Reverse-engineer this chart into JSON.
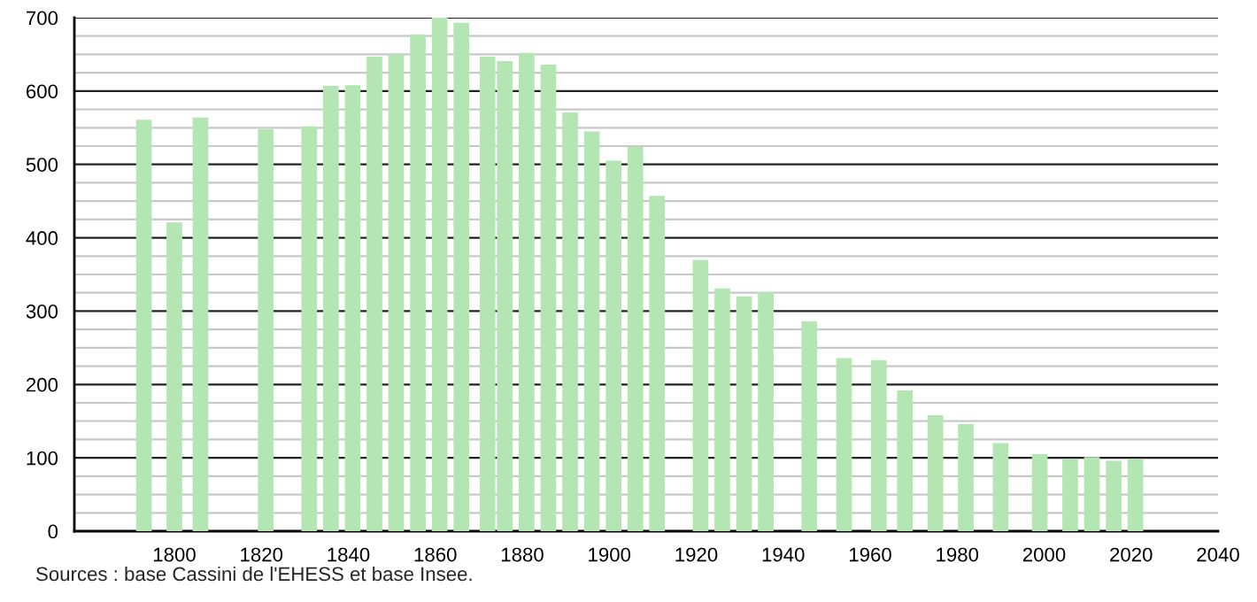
{
  "chart_data": {
    "type": "bar",
    "x": [
      1793,
      1800,
      1806,
      1821,
      1831,
      1836,
      1841,
      1846,
      1851,
      1856,
      1861,
      1866,
      1872,
      1876,
      1881,
      1886,
      1891,
      1896,
      1901,
      1906,
      1911,
      1921,
      1926,
      1931,
      1936,
      1946,
      1954,
      1962,
      1968,
      1975,
      1982,
      1990,
      1999,
      2006,
      2011,
      2016,
      2021
    ],
    "values": [
      561,
      421,
      564,
      548,
      552,
      607,
      608,
      647,
      650,
      677,
      700,
      693,
      647,
      641,
      652,
      636,
      571,
      545,
      505,
      524,
      457,
      370,
      331,
      320,
      326,
      286,
      236,
      233,
      192,
      158,
      146,
      120,
      105,
      98,
      101,
      96,
      98
    ],
    "color": "#b3e6b3",
    "xlim": [
      1777,
      2040
    ],
    "xticks": [
      1800,
      1820,
      1840,
      1860,
      1880,
      1900,
      1920,
      1940,
      1960,
      1980,
      2000,
      2020,
      2040
    ],
    "ylim": [
      0,
      700
    ],
    "yticks": [
      0,
      {
        "value": 25,
        "label": null
      },
      {
        "value": 50,
        "label": null
      },
      {
        "value": 75,
        "label": null
      },
      100,
      {
        "value": 125,
        "label": null
      },
      {
        "value": 150,
        "label": null
      },
      {
        "value": 175,
        "label": null
      },
      200,
      {
        "value": 225,
        "label": null
      },
      {
        "value": 250,
        "label": null
      },
      {
        "value": 275,
        "label": null
      },
      300,
      {
        "value": 325,
        "label": null
      },
      {
        "value": 350,
        "label": null
      },
      {
        "value": 375,
        "label": null
      },
      400,
      {
        "value": 425,
        "label": null
      },
      {
        "value": 450,
        "label": null
      },
      {
        "value": 475,
        "label": null
      },
      500,
      {
        "value": 525,
        "label": null
      },
      {
        "value": 550,
        "label": null
      },
      {
        "value": 575,
        "label": null
      },
      600,
      {
        "value": 625,
        "label": null
      },
      {
        "value": 650,
        "label": null
      },
      {
        "value": 675,
        "label": null
      },
      700
    ],
    "grid": "y",
    "annotations": [
      "Sources : base Cassini de l'EHESS et base Insee."
    ]
  }
}
